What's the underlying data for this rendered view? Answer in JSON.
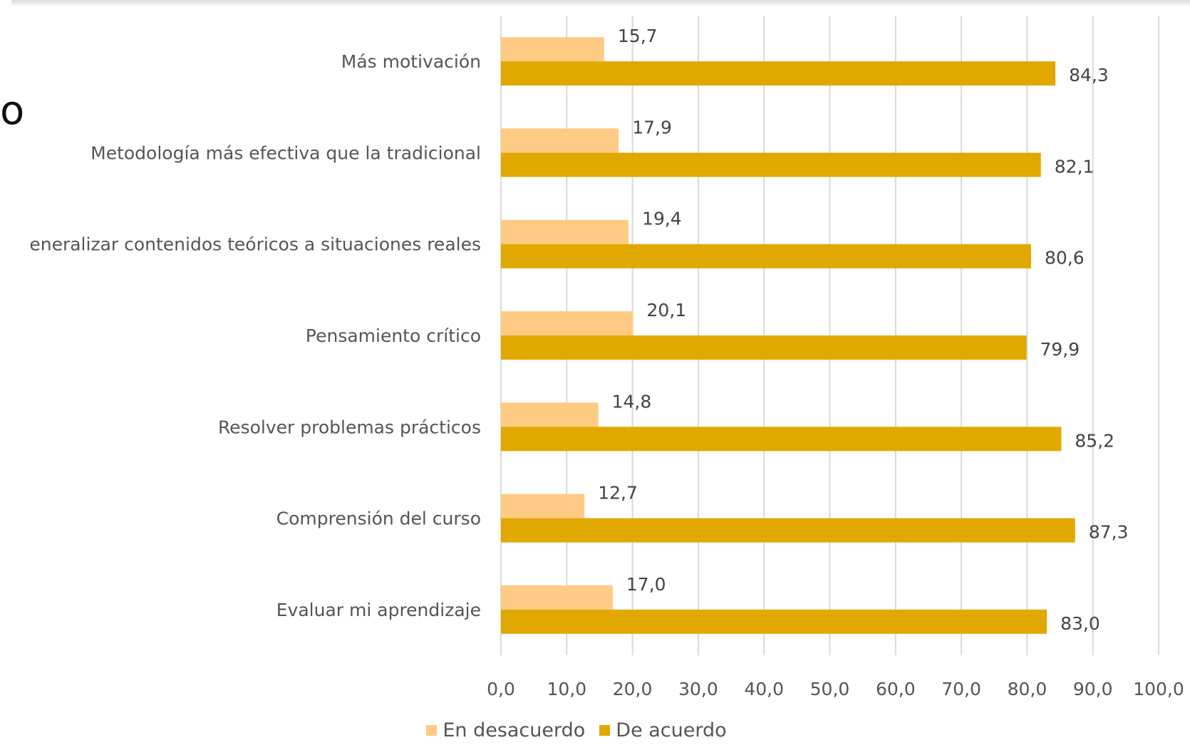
{
  "page": {
    "truncated_title": "o"
  },
  "chart_data": {
    "type": "bar",
    "orientation": "horizontal",
    "categories": [
      "Más motivación",
      "Metodología más efectiva que la tradicional",
      "eneralizar contenidos teóricos a situaciones reales",
      "Pensamiento crítico",
      "Resolver problemas prácticos",
      "Comprensión del curso",
      "Evaluar mi aprendizaje"
    ],
    "series": [
      {
        "name": "En desacuerdo",
        "color": "#fecb84",
        "values": [
          15.7,
          17.9,
          19.4,
          20.1,
          14.8,
          12.7,
          17.0
        ],
        "labels": [
          "15,7",
          "17,9",
          "19,4",
          "20,1",
          "14,8",
          "12,7",
          "17,0"
        ]
      },
      {
        "name": "De acuerdo",
        "color": "#e0a800",
        "values": [
          84.3,
          82.1,
          80.6,
          79.9,
          85.2,
          87.3,
          83.0
        ],
        "labels": [
          "84,3",
          "82,1",
          "80,6",
          "79,9",
          "85,2",
          "87,3",
          "83,0"
        ]
      }
    ],
    "xlim": [
      0,
      100
    ],
    "xticks": [
      "0,0",
      "10,0",
      "20,0",
      "30,0",
      "40,0",
      "50,0",
      "60,0",
      "70,0",
      "80,0",
      "90,0",
      "100,0"
    ],
    "grid": true,
    "legend_position": "bottom",
    "gridline_color": "#d9d9d9"
  }
}
